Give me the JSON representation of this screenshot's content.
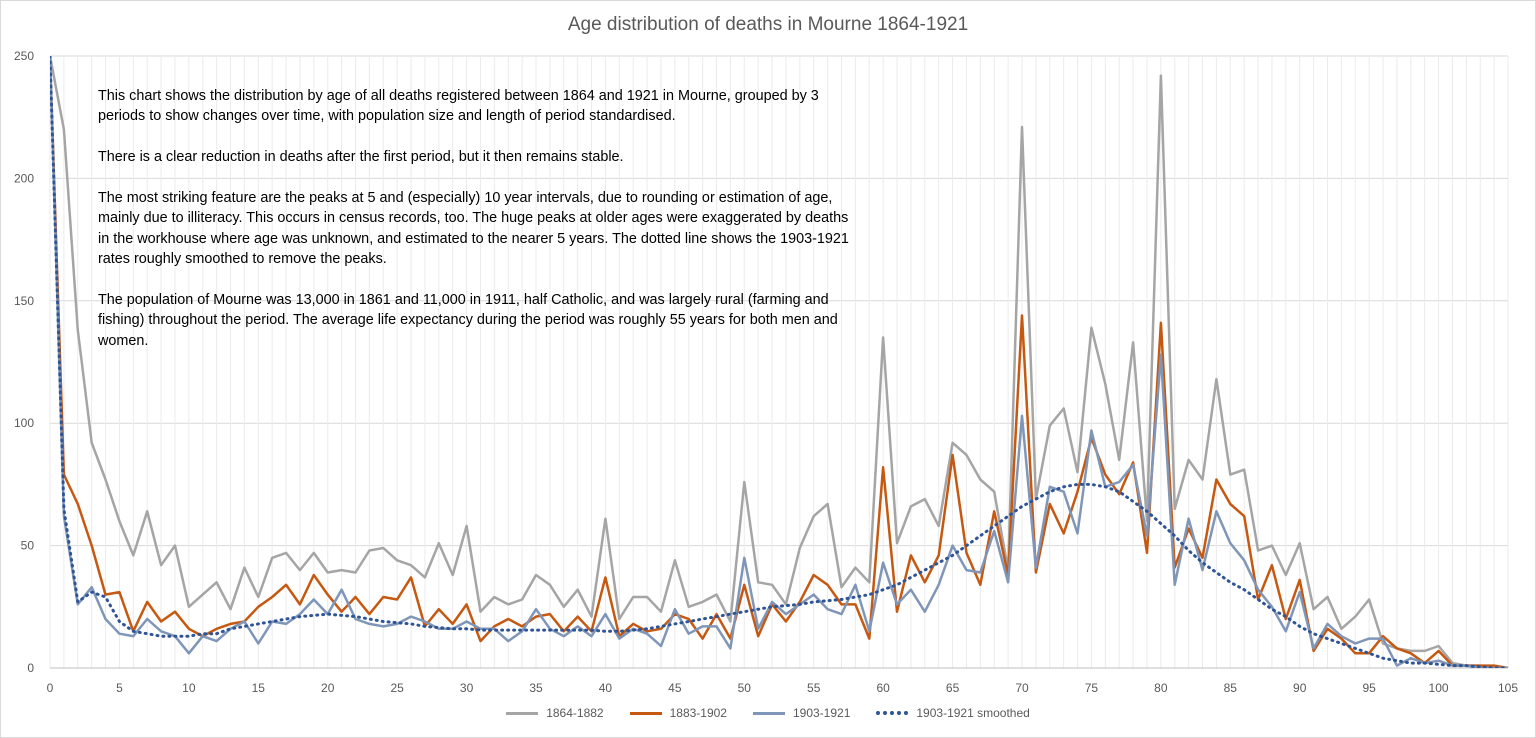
{
  "chart_data": {
    "type": "line",
    "title": "Age distribution of deaths in Mourne 1864-1921",
    "xlabel": "",
    "ylabel": "",
    "xlim": [
      0,
      105
    ],
    "ylim": [
      0,
      250
    ],
    "x_ticks": [
      0,
      5,
      10,
      15,
      20,
      25,
      30,
      35,
      40,
      45,
      50,
      55,
      60,
      65,
      70,
      75,
      80,
      85,
      90,
      95,
      100,
      105
    ],
    "y_ticks": [
      0,
      50,
      100,
      150,
      200,
      250
    ],
    "grid": "vertical and horizontal",
    "legend": "bottom",
    "series": [
      {
        "name": "1864-1882",
        "color": "#a5a5a5",
        "style": "solid",
        "x": [
          0,
          1,
          2,
          3,
          4,
          5,
          6,
          7,
          8,
          9,
          10,
          11,
          12,
          13,
          14,
          15,
          16,
          17,
          18,
          19,
          20,
          21,
          22,
          23,
          24,
          25,
          26,
          27,
          28,
          29,
          30,
          31,
          32,
          33,
          34,
          35,
          36,
          37,
          38,
          39,
          40,
          41,
          42,
          43,
          44,
          45,
          46,
          47,
          48,
          49,
          50,
          51,
          52,
          53,
          54,
          55,
          56,
          57,
          58,
          59,
          60,
          61,
          62,
          63,
          64,
          65,
          66,
          67,
          68,
          69,
          70,
          71,
          72,
          73,
          74,
          75,
          76,
          77,
          78,
          79,
          80,
          81,
          82,
          83,
          84,
          85,
          86,
          87,
          88,
          89,
          90,
          91,
          92,
          93,
          94,
          95,
          96,
          97,
          98,
          99,
          100,
          101,
          102,
          103,
          104,
          105
        ],
        "values": [
          250,
          220,
          138,
          92,
          77,
          60,
          46,
          64,
          42,
          50,
          25,
          30,
          35,
          24,
          41,
          29,
          45,
          47,
          40,
          47,
          39,
          40,
          39,
          48,
          49,
          44,
          42,
          37,
          51,
          38,
          58,
          23,
          29,
          26,
          28,
          38,
          34,
          25,
          32,
          21,
          61,
          20,
          29,
          29,
          23,
          44,
          25,
          27,
          30,
          19,
          76,
          35,
          34,
          26,
          49,
          62,
          67,
          33,
          41,
          35,
          135,
          51,
          66,
          69,
          58,
          92,
          87,
          77,
          72,
          40,
          221,
          69,
          99,
          106,
          80,
          139,
          116,
          85,
          133,
          60,
          242,
          65,
          85,
          77,
          118,
          79,
          81,
          48,
          50,
          38,
          51,
          24,
          29,
          16,
          21,
          28,
          10,
          8,
          7,
          7,
          9,
          2,
          1,
          1,
          0,
          0
        ]
      },
      {
        "name": "1883-1902",
        "color": "#c65911",
        "style": "solid",
        "x": [
          0,
          1,
          2,
          3,
          4,
          5,
          6,
          7,
          8,
          9,
          10,
          11,
          12,
          13,
          14,
          15,
          16,
          17,
          18,
          19,
          20,
          21,
          22,
          23,
          24,
          25,
          26,
          27,
          28,
          29,
          30,
          31,
          32,
          33,
          34,
          35,
          36,
          37,
          38,
          39,
          40,
          41,
          42,
          43,
          44,
          45,
          46,
          47,
          48,
          49,
          50,
          51,
          52,
          53,
          54,
          55,
          56,
          57,
          58,
          59,
          60,
          61,
          62,
          63,
          64,
          65,
          66,
          67,
          68,
          69,
          70,
          71,
          72,
          73,
          74,
          75,
          76,
          77,
          78,
          79,
          80,
          81,
          82,
          83,
          84,
          85,
          86,
          87,
          88,
          89,
          90,
          91,
          92,
          93,
          94,
          95,
          96,
          97,
          98,
          99,
          100,
          101,
          102,
          103,
          104,
          105
        ],
        "values": [
          250,
          79,
          67,
          50,
          30,
          31,
          15,
          27,
          19,
          23,
          16,
          13,
          16,
          18,
          19,
          25,
          29,
          34,
          26,
          38,
          30,
          23,
          29,
          22,
          29,
          28,
          37,
          17,
          24,
          18,
          26,
          11,
          17,
          20,
          17,
          21,
          22,
          15,
          21,
          15,
          37,
          13,
          18,
          15,
          16,
          22,
          20,
          12,
          22,
          12,
          34,
          13,
          26,
          19,
          27,
          38,
          34,
          26,
          26,
          12,
          82,
          23,
          46,
          35,
          46,
          87,
          47,
          34,
          64,
          38,
          144,
          39,
          67,
          55,
          72,
          94,
          79,
          71,
          84,
          47,
          141,
          41,
          57,
          45,
          77,
          67,
          62,
          28,
          42,
          20,
          36,
          7,
          16,
          12,
          6,
          6,
          13,
          8,
          6,
          2,
          7,
          1,
          1,
          1,
          1,
          0
        ]
      },
      {
        "name": "1903-1921",
        "color": "#7f96b8",
        "style": "solid",
        "x": [
          0,
          1,
          2,
          3,
          4,
          5,
          6,
          7,
          8,
          9,
          10,
          11,
          12,
          13,
          14,
          15,
          16,
          17,
          18,
          19,
          20,
          21,
          22,
          23,
          24,
          25,
          26,
          27,
          28,
          29,
          30,
          31,
          32,
          33,
          34,
          35,
          36,
          37,
          38,
          39,
          40,
          41,
          42,
          43,
          44,
          45,
          46,
          47,
          48,
          49,
          50,
          51,
          52,
          53,
          54,
          55,
          56,
          57,
          58,
          59,
          60,
          61,
          62,
          63,
          64,
          65,
          66,
          67,
          68,
          69,
          70,
          71,
          72,
          73,
          74,
          75,
          76,
          77,
          78,
          79,
          80,
          81,
          82,
          83,
          84,
          85,
          86,
          87,
          88,
          89,
          90,
          91,
          92,
          93,
          94,
          95,
          96,
          97,
          98,
          99,
          100,
          101,
          102,
          103,
          104,
          105
        ],
        "values": [
          250,
          62,
          26,
          33,
          20,
          14,
          13,
          20,
          15,
          13,
          6,
          13,
          11,
          16,
          19,
          10,
          19,
          18,
          22,
          28,
          22,
          32,
          20,
          18,
          17,
          18,
          21,
          19,
          16,
          16,
          19,
          16,
          16,
          11,
          15,
          24,
          16,
          13,
          17,
          13,
          22,
          12,
          16,
          14,
          9,
          24,
          14,
          17,
          17,
          8,
          45,
          16,
          27,
          22,
          26,
          30,
          24,
          22,
          34,
          15,
          43,
          26,
          32,
          23,
          34,
          50,
          40,
          39,
          56,
          35,
          103,
          41,
          74,
          72,
          55,
          97,
          74,
          76,
          83,
          54,
          128,
          34,
          61,
          40,
          64,
          51,
          44,
          32,
          25,
          15,
          31,
          8,
          18,
          13,
          10,
          12,
          12,
          1,
          4,
          2,
          3,
          1,
          1,
          0,
          0,
          0
        ]
      },
      {
        "name": "1903-1921 smoothed",
        "color": "#2f5597",
        "style": "dotted",
        "x": [
          0,
          1,
          2,
          3,
          4,
          5,
          6,
          7,
          8,
          9,
          10,
          11,
          12,
          13,
          14,
          15,
          16,
          17,
          18,
          19,
          20,
          21,
          22,
          23,
          24,
          25,
          26,
          27,
          28,
          29,
          30,
          31,
          32,
          33,
          34,
          35,
          36,
          37,
          38,
          39,
          40,
          41,
          42,
          43,
          44,
          45,
          46,
          47,
          48,
          49,
          50,
          51,
          52,
          53,
          54,
          55,
          56,
          57,
          58,
          59,
          60,
          61,
          62,
          63,
          64,
          65,
          66,
          67,
          68,
          69,
          70,
          71,
          72,
          73,
          74,
          75,
          76,
          77,
          78,
          79,
          80,
          81,
          82,
          83,
          84,
          85,
          86,
          87,
          88,
          89,
          90,
          91,
          92,
          93,
          94,
          95,
          96,
          97,
          98,
          99,
          100,
          101,
          102,
          103,
          104,
          105
        ],
        "values": [
          250,
          65,
          27,
          31,
          29,
          19,
          15,
          14,
          13,
          13,
          13,
          14,
          14,
          16,
          17,
          18,
          19,
          20,
          21,
          21.5,
          22,
          21.5,
          21,
          20,
          19,
          18.5,
          18,
          17,
          16.5,
          16,
          16,
          15.5,
          15.5,
          15.5,
          15.5,
          15.5,
          15.5,
          15.5,
          15.5,
          15.5,
          15,
          15,
          15.5,
          16,
          17,
          18,
          19,
          20,
          21,
          22,
          23,
          24,
          25,
          25.5,
          26,
          27,
          27.5,
          28,
          29,
          30,
          32,
          34,
          37,
          40,
          43,
          46,
          50,
          54,
          58,
          62,
          66,
          69,
          72,
          74,
          75,
          75,
          74,
          72,
          68,
          64,
          59,
          54,
          48,
          43,
          39,
          35,
          32,
          28,
          24,
          21,
          17,
          14,
          12,
          10,
          8,
          6,
          4,
          3,
          2,
          2,
          1.5,
          1,
          1,
          0.5,
          0,
          0
        ]
      }
    ],
    "annotations": [
      "This chart shows the distribution by age of all deaths registered between 1864 and 1921 in Mourne, grouped by 3  periods to show changes over time, with population size and length of period standardised.",
      "There is a clear reduction in deaths after the first period, but it then remains stable.",
      "The most striking feature are the peaks at 5 and (especially) 10 year intervals, due to rounding or estimation of age, mainly due to illiteracy. This occurs in census records, too. The huge peaks at older ages were exaggerated by deaths in the workhouse where age was unknown, and estimated to the nearer 5 years. The dotted line shows the 1903-1921 rates roughly smoothed to remove the peaks.",
      "The population of Mourne was 13,000 in 1861 and 11,000 in 1911, half Catholic, and was largely rural (farming and fishing) throughout the period. The average life expectancy during the period was roughly 55 years for both men and women."
    ]
  }
}
